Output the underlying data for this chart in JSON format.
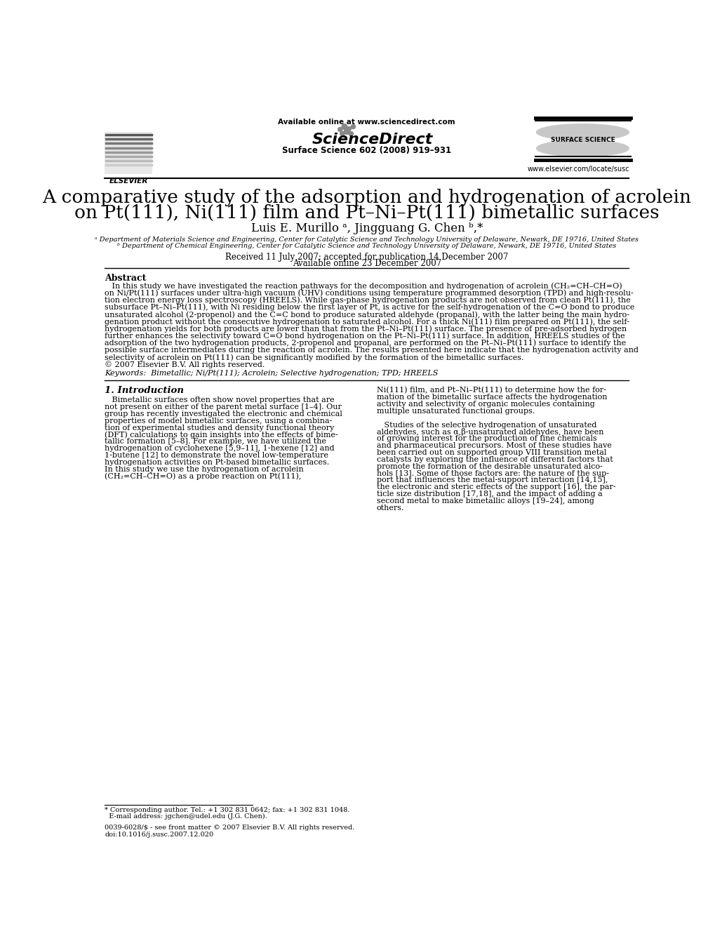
{
  "background_color": "#ffffff",
  "title_line1": "A comparative study of the adsorption and hydrogenation of acrolein",
  "title_line2": "on Pt(111), Ni(111) film and Pt–Ni–Pt(111) bimetallic surfaces",
  "authors": "Luis E. Murillo ᵃ, Jingguang G. Chen ᵇ,*",
  "affil_a": "ᵃ Department of Materials Science and Engineering, Center for Catalytic Science and Technology University of Delaware, Newark, DE 19716, United States",
  "affil_b": "ᵇ Department of Chemical Engineering, Center for Catalytic Science and Technology University of Delaware, Newark, DE 19716, United States",
  "date1": "Received 11 July 2007; accepted for publication 14 December 2007",
  "date2": "Available online 23 December 2007",
  "journal": "Surface Science 602 (2008) 919–931",
  "available_online": "Available online at www.sciencedirect.com",
  "url": "www.elsevier.com/locate/susc",
  "doi": "doi:10.1016/j.susc.2007.12.020",
  "issn": "0039-6028/$ - see front matter © 2007 Elsevier B.V. All rights reserved.",
  "footnote1": "* Corresponding author. Tel.: +1 302 831 0642; fax: +1 302 831 1048.",
  "footnote2": "  E-mail address: jgchen@udel.edu (J.G. Chen).",
  "abstract_title": "Abstract",
  "keywords": "Keywords:  Bimetallic; Ni/Pt(111); Acrolein; Selective hydrogenation; TPD; HREELS",
  "intro_title": "1. Introduction",
  "abstract_lines": [
    "   In this study we have investigated the reaction pathways for the decomposition and hydrogenation of acrolein (CH₂=CH–CH=O)",
    "on Ni/Pt(111) surfaces under ultra-high vacuum (UHV) conditions using temperature programmed desorption (TPD) and high-resolu-",
    "tion electron energy loss spectroscopy (HREELS). While gas-phase hydrogenation products are not observed from clean Pt(111), the",
    "subsurface Pt–Ni–Pt(111), with Ni residing below the first layer of Pt, is active for the self-hydrogenation of the C=O bond to produce",
    "unsaturated alcohol (2-propenol) and the C=C bond to produce saturated aldehyde (propanal), with the latter being the main hydro-",
    "genation product without the consecutive hydrogenation to saturated alcohol. For a thick Ni(111) film prepared on Pt(111), the self-",
    "hydrogenation yields for both products are lower than that from the Pt–Ni–Pt(111) surface. The presence of pre-adsorbed hydrogen",
    "further enhances the selectivity toward C=O bond hydrogenation on the Pt–Ni–Pt(111) surface. In addition, HREELS studies of the",
    "adsorption of the two hydrogenation products, 2-propenol and propanal, are performed on the Pt–Ni–Pt(111) surface to identify the",
    "possible surface intermediates during the reaction of acrolein. The results presented here indicate that the hydrogenation activity and",
    "selectivity of acrolein on Pt(111) can be significantly modified by the formation of the bimetallic surfaces.",
    "© 2007 Elsevier B.V. All rights reserved."
  ],
  "col1_lines": [
    "   Bimetallic surfaces often show novel properties that are",
    "not present on either of the parent metal surface [1–4]. Our",
    "group has recently investigated the electronic and chemical",
    "properties of model bimetallic surfaces, using a combina-",
    "tion of experimental studies and density functional theory",
    "(DFT) calculations to gain insights into the effects of bime-",
    "tallic formation [5–8]. For example, we have utilized the",
    "hydrogenation of cyclohexene [5,9–11], 1-hexene [12] and",
    "1-butene [12] to demonstrate the novel low-temperature",
    "hydrogenation activities on Pt-based bimetallic surfaces.",
    "In this study we use the hydrogenation of acrolein",
    "(CH₂=CH–CH=O) as a probe reaction on Pt(111),"
  ],
  "col2_lines": [
    "Ni(111) film, and Pt–Ni–Pt(111) to determine how the for-",
    "mation of the bimetallic surface affects the hydrogenation",
    "activity and selectivity of organic molecules containing",
    "multiple unsaturated functional groups.",
    "",
    "   Studies of the selective hydrogenation of unsaturated",
    "aldehydes, such as α,β-unsaturated aldehydes, have been",
    "of growing interest for the production of fine chemicals",
    "and pharmaceutical precursors. Most of these studies have",
    "been carried out on supported group VIII transition metal",
    "catalysts by exploring the influence of different factors that",
    "promote the formation of the desirable unsaturated alco-",
    "hols [13]. Some of those factors are: the nature of the sup-",
    "port that influences the metal-support interaction [14,15],",
    "the electronic and steric effects of the support [16], the par-",
    "ticle size distribution [17,18], and the impact of adding a",
    "second metal to make bimetallic alloys [19–24], among",
    "others."
  ]
}
